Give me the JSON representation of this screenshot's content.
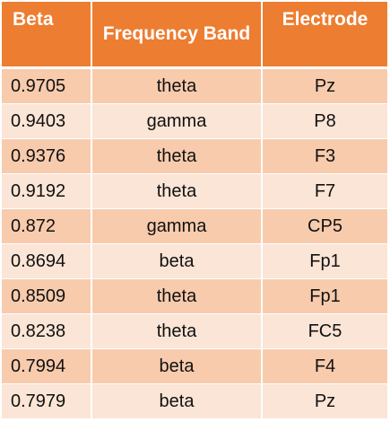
{
  "table": {
    "headers": [
      "Beta",
      "Frequency Band",
      "Electrode"
    ],
    "rows": [
      [
        "0.9705",
        "theta",
        "Pz"
      ],
      [
        "0.9403",
        "gamma",
        "P8"
      ],
      [
        "0.9376",
        "theta",
        "F3"
      ],
      [
        "0.9192",
        "theta",
        "F7"
      ],
      [
        "0.872",
        "gamma",
        "CP5"
      ],
      [
        "0.8694",
        "beta",
        "Fp1"
      ],
      [
        "0.8509",
        "theta",
        "Fp1"
      ],
      [
        "0.8238",
        "theta",
        "FC5"
      ],
      [
        "0.7994",
        "beta",
        "F4"
      ],
      [
        "0.7979",
        "beta",
        "Pz"
      ]
    ]
  },
  "colors": {
    "header": "#ED7D31",
    "row_dark": "#F8CBAD",
    "row_light": "#FBE5D6"
  }
}
